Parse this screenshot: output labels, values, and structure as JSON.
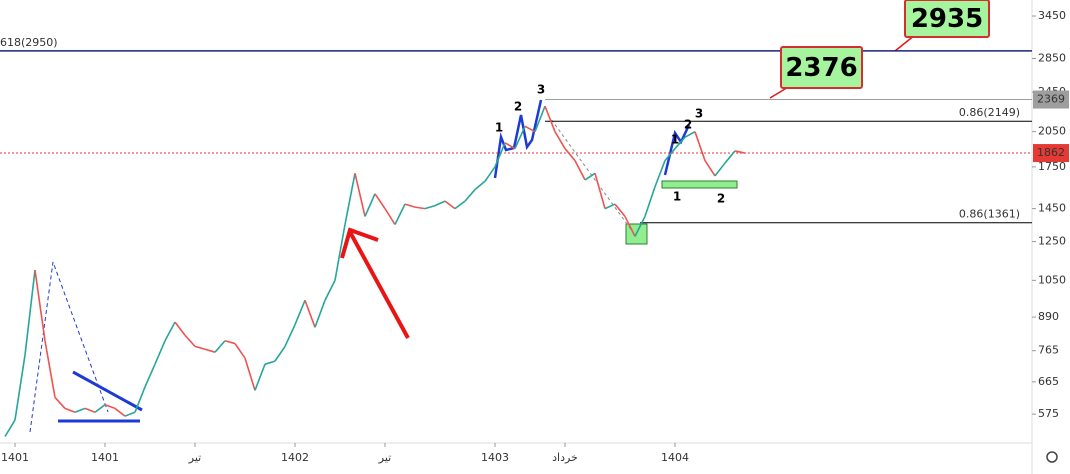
{
  "chart_data": {
    "type": "line",
    "categories": [
      null,
      "1401",
      null,
      null,
      null,
      null,
      null,
      null,
      null,
      null,
      "1401",
      null,
      null,
      null,
      null,
      null,
      null,
      null,
      null,
      "تیر",
      null,
      null,
      null,
      null,
      null,
      null,
      null,
      null,
      null,
      "1402",
      null,
      null,
      null,
      null,
      null,
      null,
      null,
      null,
      "تیر",
      null,
      null,
      null,
      null,
      null,
      null,
      null,
      null,
      null,
      null,
      "1403",
      null,
      null,
      null,
      null,
      null,
      null,
      "خرداد",
      null,
      null,
      null,
      null,
      null,
      null,
      null,
      null,
      null,
      null,
      "1404",
      null,
      null,
      null,
      null,
      null,
      null,
      null
    ],
    "values": [
      520,
      560,
      750,
      1100,
      800,
      620,
      590,
      580,
      590,
      580,
      600,
      590,
      570,
      580,
      650,
      720,
      800,
      870,
      820,
      780,
      770,
      760,
      800,
      790,
      740,
      640,
      720,
      730,
      780,
      860,
      960,
      850,
      960,
      1050,
      1350,
      1700,
      1400,
      1550,
      1450,
      1350,
      1480,
      1460,
      1450,
      1470,
      1500,
      1450,
      1500,
      1580,
      1640,
      1750,
      1950,
      1900,
      2100,
      2050,
      2300,
      2050,
      1900,
      1800,
      1650,
      1700,
      1450,
      1480,
      1400,
      1280,
      1400,
      1600,
      1800,
      1900,
      2000,
      2050,
      1800,
      1680,
      1780,
      1880,
      1862
    ],
    "up_color": "#26a69a",
    "down_color": "#ef5350",
    "log_scale": true,
    "ylim": [
      505,
      3708
    ],
    "yticks": [
      575,
      665,
      765,
      890,
      1050,
      1250,
      1450,
      1750,
      2050,
      2450,
      2850,
      3450
    ],
    "levels": [
      {
        "value": 2950,
        "label": "618(2950)",
        "color": "#1a237e"
      },
      {
        "value": 2369,
        "label": "",
        "color": "#9e9e9e"
      },
      {
        "value": 2149,
        "label": "0.86(2149)",
        "color": "#000000"
      },
      {
        "value": 1361,
        "label": "0.86(1361)",
        "color": "#000000"
      },
      {
        "value": 1862,
        "label": "",
        "color": "#e53935"
      }
    ],
    "price_tags": [
      {
        "value": 2369,
        "label": "2369",
        "color": "#9e9e9e"
      },
      {
        "value": 1862,
        "label": "1862",
        "color": "#e53935"
      }
    ],
    "callouts": [
      "2935",
      "2376"
    ],
    "wave_labels": [
      "1",
      "2",
      "3",
      "1",
      "2",
      "3",
      "1",
      "2"
    ]
  }
}
